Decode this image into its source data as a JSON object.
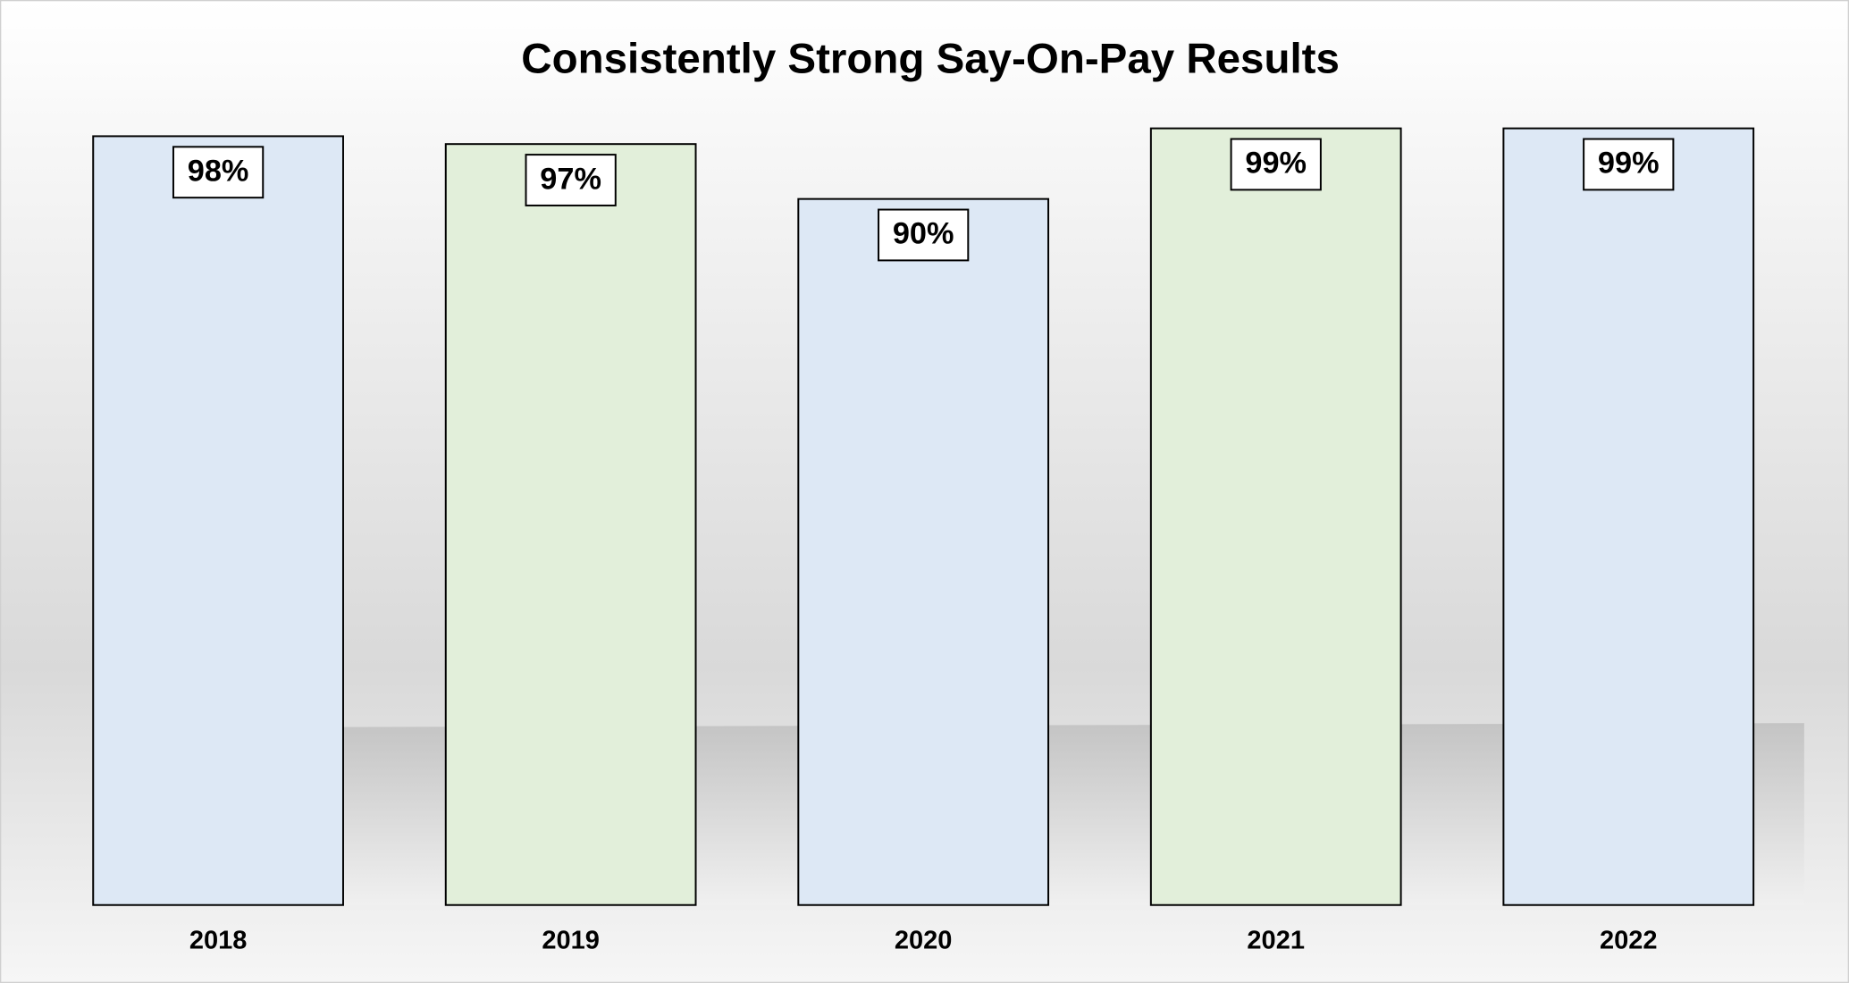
{
  "chart_data": {
    "type": "bar",
    "title": "Consistently Strong Say-On-Pay Results",
    "categories": [
      "2018",
      "2019",
      "2020",
      "2021",
      "2022"
    ],
    "values": [
      98,
      97,
      90,
      99,
      99
    ],
    "value_labels": [
      "98%",
      "97%",
      "90%",
      "99%",
      "99%"
    ],
    "colors": [
      "#dde8f5",
      "#e2efda",
      "#dde8f5",
      "#e2efda",
      "#dde8f5"
    ]
  }
}
